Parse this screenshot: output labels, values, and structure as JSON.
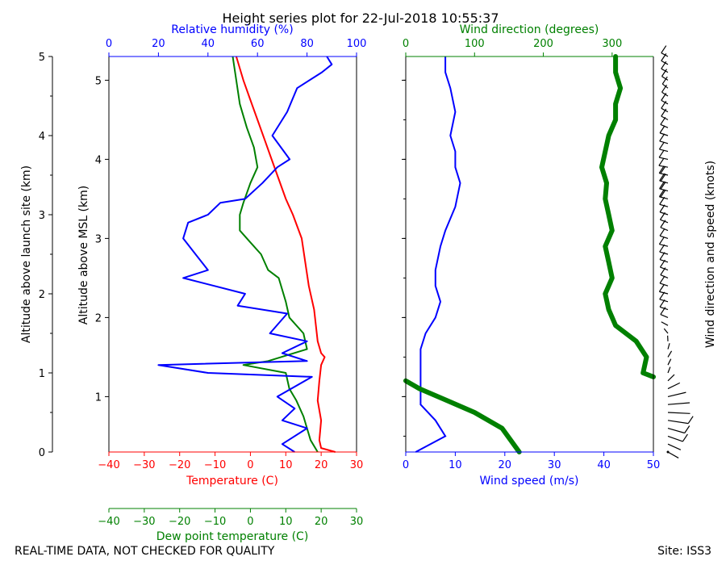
{
  "page": {
    "title": "Height series plot for 22-Jul-2018 10:55:37",
    "footer_left": "REAL-TIME DATA, NOT CHECKED FOR QUALITY",
    "footer_right": "Site: ISS3"
  },
  "colors": {
    "temperature": "#ff0000",
    "dewpoint": "#008000",
    "rh": "#0000ff",
    "wind_speed": "#0000ff",
    "wind_direction": "#008000",
    "barbs": "#000000"
  },
  "chart_data": [
    {
      "type": "line",
      "name": "thermo-panel",
      "ylabel": "Altitude above MSL (km)",
      "ylim": [
        0.3,
        5.3
      ],
      "y_ticks": [
        1,
        2,
        3,
        4,
        5
      ],
      "y_tick_labels": [
        "1",
        "2",
        "3",
        "4",
        "5"
      ],
      "x_axes": [
        {
          "key": "temp",
          "label": "Temperature (C)",
          "range": [
            -40,
            30
          ],
          "ticks": [
            -40,
            -30,
            -20,
            -10,
            0,
            10,
            20,
            30
          ],
          "position": "bottom"
        },
        {
          "key": "dew",
          "label": "Dew point temperature (C)",
          "range": [
            -40,
            30
          ],
          "ticks": [
            -40,
            -30,
            -20,
            -10,
            0,
            10,
            20,
            30
          ],
          "position": "bottom-offset"
        },
        {
          "key": "rh",
          "label": "Relative humidity (%)",
          "range": [
            0,
            100
          ],
          "ticks": [
            0,
            20,
            40,
            60,
            80,
            100
          ],
          "position": "top"
        }
      ],
      "series": [
        {
          "name": "Temperature",
          "axis": "temp",
          "points": [
            [
              24,
              0.3
            ],
            [
              20,
              0.35
            ],
            [
              19.5,
              0.45
            ],
            [
              20,
              0.7
            ],
            [
              19,
              0.95
            ],
            [
              19.5,
              1.2
            ],
            [
              20,
              1.4
            ],
            [
              21,
              1.5
            ],
            [
              20,
              1.55
            ],
            [
              19,
              1.7
            ],
            [
              18.5,
              1.9
            ],
            [
              18,
              2.1
            ],
            [
              16.5,
              2.4
            ],
            [
              15.5,
              2.7
            ],
            [
              14.5,
              3.0
            ],
            [
              12,
              3.3
            ],
            [
              10,
              3.5
            ],
            [
              8,
              3.75
            ],
            [
              6,
              4.0
            ],
            [
              4,
              4.25
            ],
            [
              2,
              4.5
            ],
            [
              0,
              4.75
            ],
            [
              -2,
              5.0
            ],
            [
              -4,
              5.3
            ]
          ]
        },
        {
          "name": "Dew point",
          "axis": "dew",
          "points": [
            [
              19,
              0.3
            ],
            [
              17,
              0.45
            ],
            [
              16,
              0.6
            ],
            [
              15,
              0.75
            ],
            [
              13,
              0.95
            ],
            [
              11,
              1.1
            ],
            [
              10,
              1.3
            ],
            [
              -2,
              1.4
            ],
            [
              5,
              1.45
            ],
            [
              16,
              1.6
            ],
            [
              15,
              1.8
            ],
            [
              11,
              2.0
            ],
            [
              10,
              2.2
            ],
            [
              8,
              2.5
            ],
            [
              5,
              2.6
            ],
            [
              3,
              2.8
            ],
            [
              0,
              2.95
            ],
            [
              -3,
              3.1
            ],
            [
              -3,
              3.3
            ],
            [
              -2,
              3.45
            ],
            [
              0,
              3.7
            ],
            [
              2,
              3.9
            ],
            [
              1,
              4.15
            ],
            [
              -1,
              4.4
            ],
            [
              -3,
              4.7
            ],
            [
              -4,
              5.0
            ],
            [
              -5,
              5.3
            ]
          ]
        },
        {
          "name": "Relative humidity",
          "axis": "rh",
          "points": [
            [
              75,
              0.3
            ],
            [
              70,
              0.4
            ],
            [
              80,
              0.6
            ],
            [
              70,
              0.7
            ],
            [
              75,
              0.85
            ],
            [
              68,
              1.0
            ],
            [
              82,
              1.25
            ],
            [
              40,
              1.3
            ],
            [
              20,
              1.4
            ],
            [
              80,
              1.45
            ],
            [
              70,
              1.55
            ],
            [
              80,
              1.7
            ],
            [
              65,
              1.8
            ],
            [
              72,
              2.05
            ],
            [
              52,
              2.15
            ],
            [
              55,
              2.3
            ],
            [
              30,
              2.5
            ],
            [
              40,
              2.6
            ],
            [
              35,
              2.8
            ],
            [
              30,
              3.0
            ],
            [
              32,
              3.2
            ],
            [
              40,
              3.3
            ],
            [
              45,
              3.45
            ],
            [
              55,
              3.5
            ],
            [
              62,
              3.7
            ],
            [
              68,
              3.9
            ],
            [
              73,
              4.0
            ],
            [
              66,
              4.3
            ],
            [
              72,
              4.6
            ],
            [
              76,
              4.9
            ],
            [
              86,
              5.1
            ],
            [
              90,
              5.2
            ],
            [
              88,
              5.3
            ]
          ]
        }
      ]
    },
    {
      "type": "line",
      "name": "wind-panel",
      "xlabel": "Wind speed (m/s)",
      "x2label": "Wind direction (degrees)",
      "xlim": [
        0,
        50
      ],
      "x_ticks": [
        0,
        10,
        20,
        30,
        40,
        50
      ],
      "x2lim": [
        0,
        360
      ],
      "x2_ticks": [
        0,
        100,
        200,
        300
      ],
      "series": [
        {
          "name": "Wind speed",
          "axis": "speed",
          "points": [
            [
              2,
              0.3
            ],
            [
              8,
              0.5
            ],
            [
              6,
              0.7
            ],
            [
              3,
              0.9
            ],
            [
              3,
              1.3
            ],
            [
              3,
              1.6
            ],
            [
              4,
              1.8
            ],
            [
              6,
              2.0
            ],
            [
              7,
              2.2
            ],
            [
              6,
              2.4
            ],
            [
              6,
              2.6
            ],
            [
              7,
              2.9
            ],
            [
              8,
              3.1
            ],
            [
              10,
              3.4
            ],
            [
              11,
              3.7
            ],
            [
              10,
              3.9
            ],
            [
              10,
              4.1
            ],
            [
              9,
              4.3
            ],
            [
              10,
              4.6
            ],
            [
              9,
              4.9
            ],
            [
              8,
              5.1
            ],
            [
              8,
              5.3
            ]
          ]
        },
        {
          "name": "Wind direction",
          "axis": "direction",
          "points": [
            [
              165,
              0.3
            ],
            [
              140,
              0.6
            ],
            [
              100,
              0.8
            ],
            [
              60,
              0.95
            ],
            [
              20,
              1.1
            ],
            [
              0,
              1.2
            ],
            [
              360,
              1.25
            ],
            [
              345,
              1.3
            ],
            [
              350,
              1.5
            ],
            [
              335,
              1.7
            ],
            [
              305,
              1.9
            ],
            [
              295,
              2.1
            ],
            [
              290,
              2.3
            ],
            [
              300,
              2.5
            ],
            [
              295,
              2.7
            ],
            [
              290,
              2.9
            ],
            [
              300,
              3.1
            ],
            [
              295,
              3.3
            ],
            [
              290,
              3.5
            ],
            [
              292,
              3.7
            ],
            [
              285,
              3.9
            ],
            [
              290,
              4.1
            ],
            [
              295,
              4.3
            ],
            [
              305,
              4.5
            ],
            [
              305,
              4.7
            ],
            [
              312,
              4.9
            ],
            [
              305,
              5.1
            ],
            [
              305,
              5.3
            ]
          ]
        }
      ]
    }
  ],
  "launch_axis": {
    "label": "Altitude above launch site (km)",
    "ticks": [
      "0",
      "1",
      "2",
      "3",
      "4",
      "5"
    ]
  },
  "barbs_panel": {
    "label": "Wind direction and speed (knots)"
  }
}
